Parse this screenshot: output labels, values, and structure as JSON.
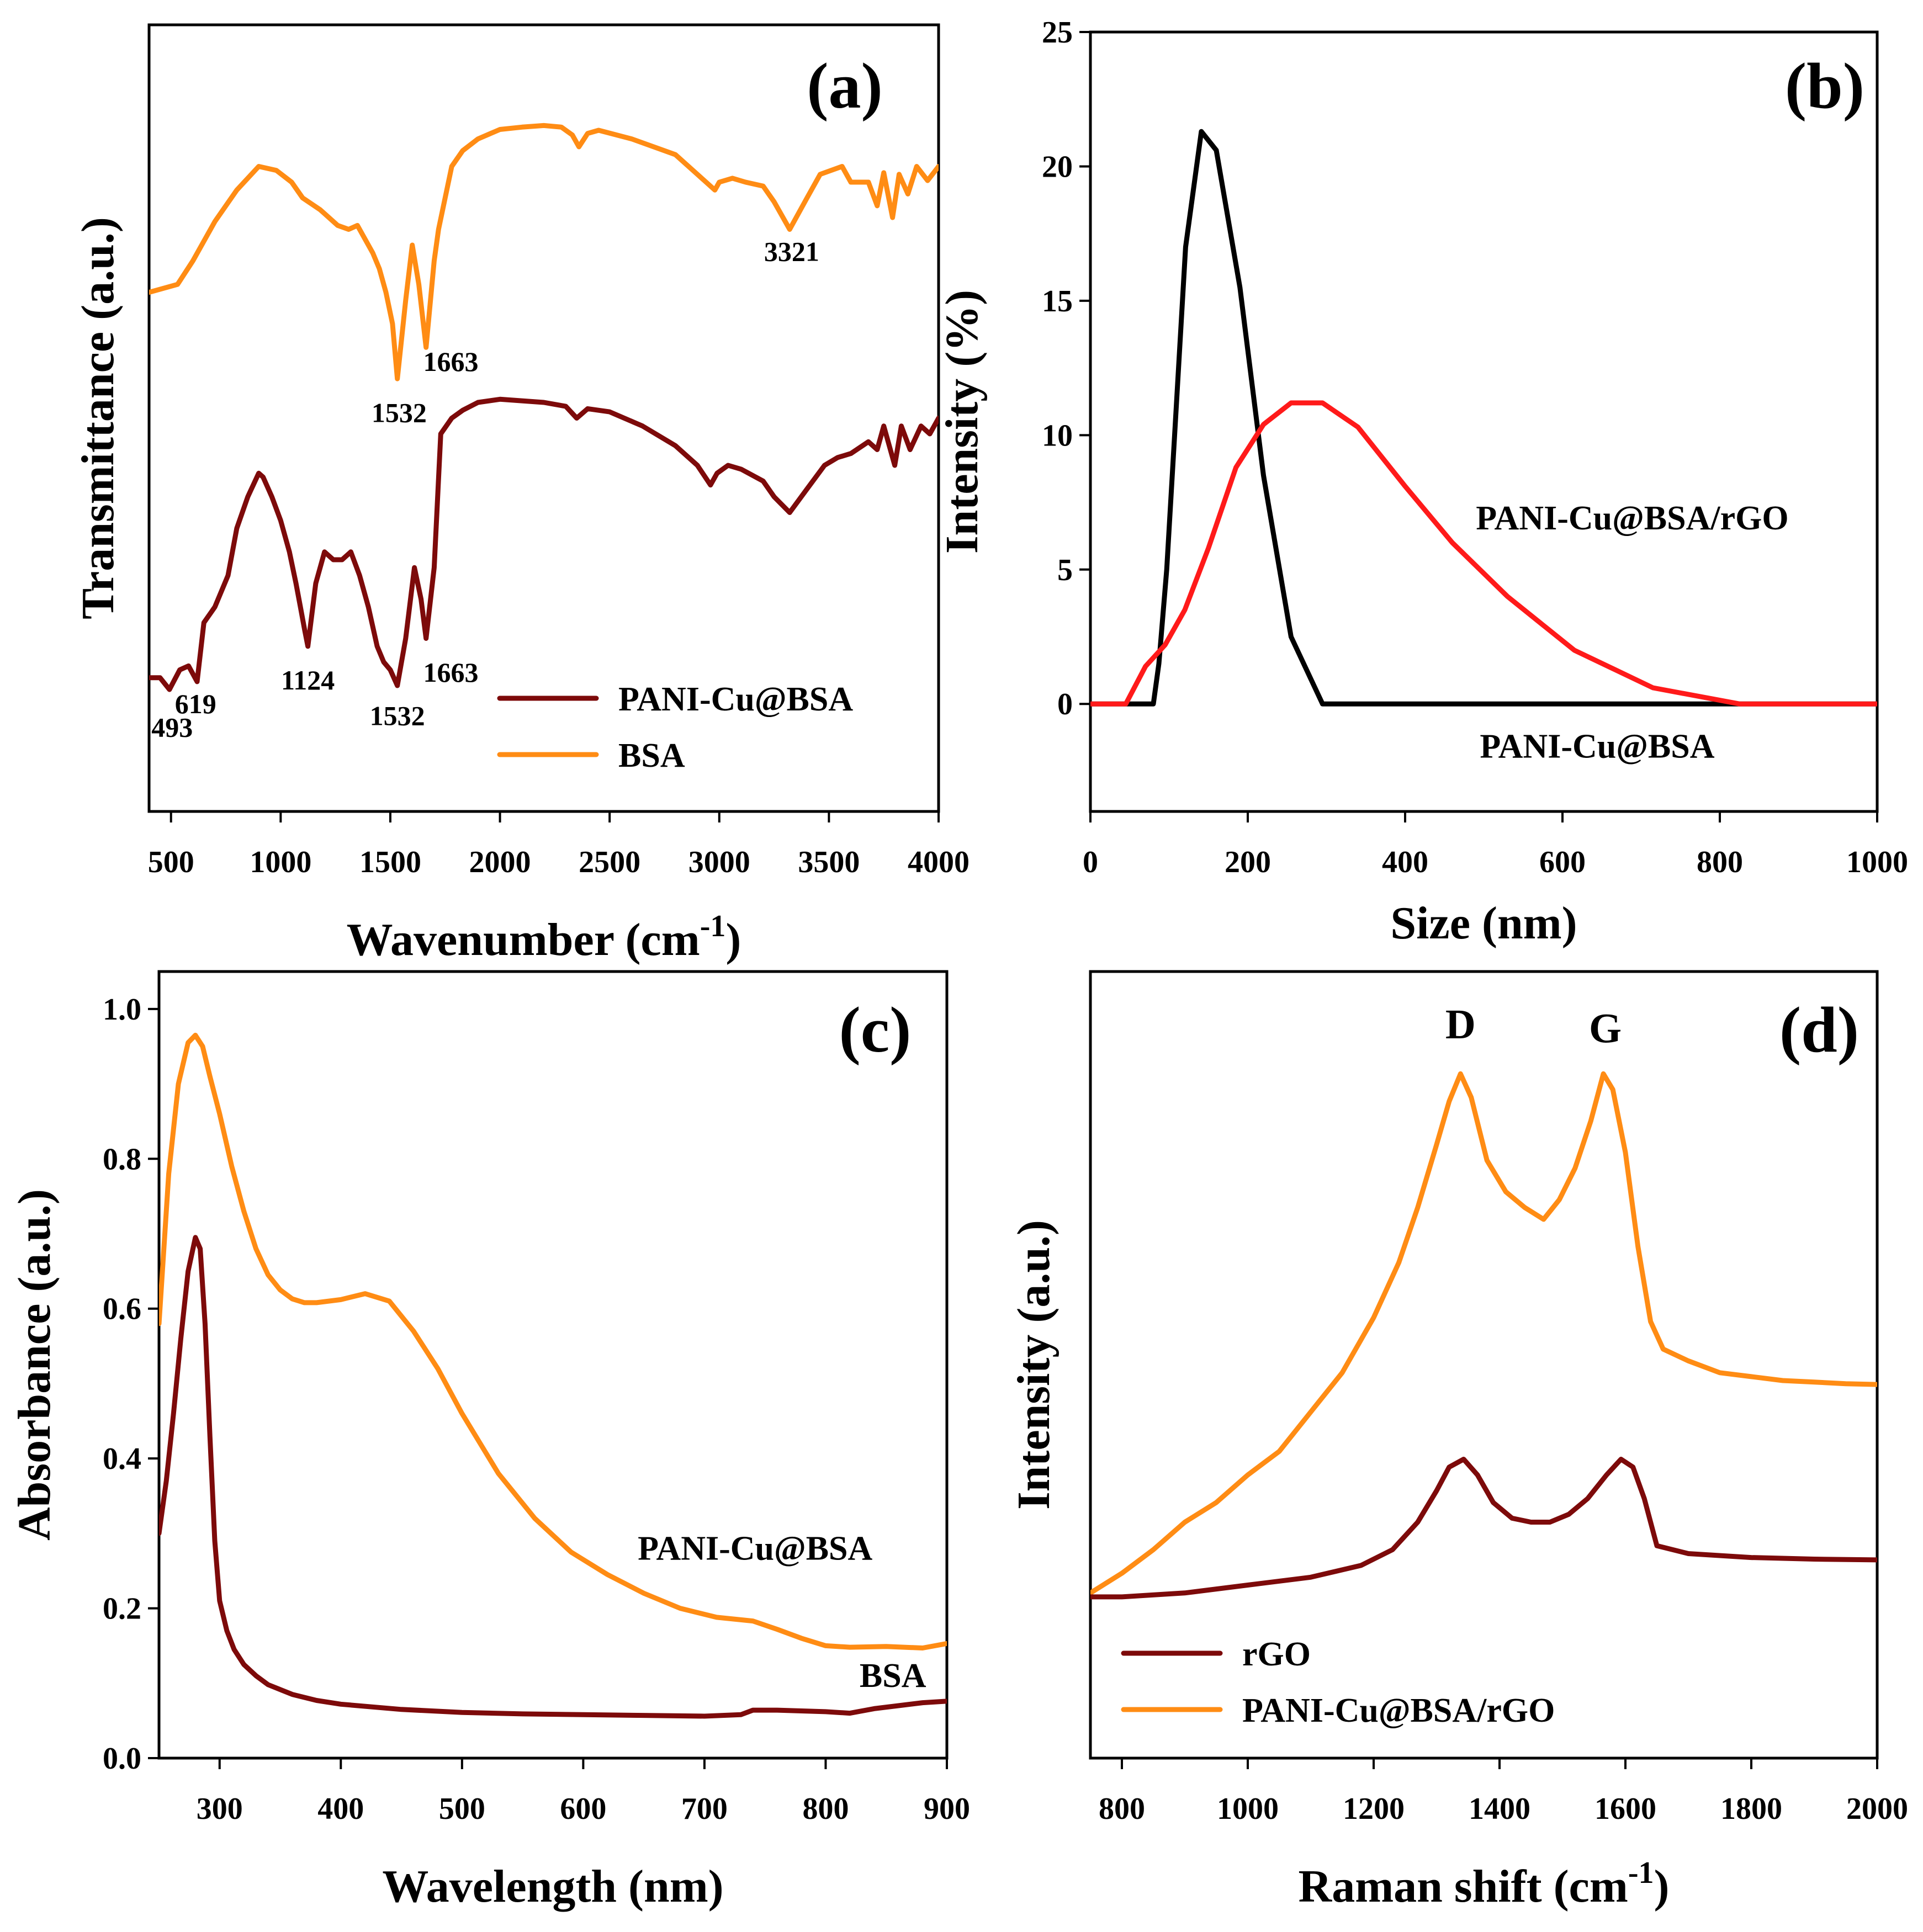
{
  "colors": {
    "orange": "#ff8c14",
    "maroon": "#7d0a0a",
    "black": "#000000",
    "red": "#ff1a1a"
  },
  "chart_data": [
    {
      "id": "a",
      "type": "line",
      "panel_label": "(a)",
      "xlabel": "Wavenumber (cm",
      "xlabel_sup": "-1",
      "xlabel_close": ")",
      "ylabel": "Transmittance (a.u.)",
      "xlim": [
        400,
        4000
      ],
      "ylim": [
        0,
        1
      ],
      "y_ticks_shown": false,
      "x_ticks": [
        500,
        1000,
        1500,
        2000,
        2500,
        3000,
        3500,
        4000
      ],
      "legend": {
        "position": "bottom-right",
        "entries": [
          "PANI-Cu@BSA",
          "BSA"
        ]
      },
      "series": [
        {
          "name": "BSA",
          "color": "orange",
          "x": [
            400,
            530,
            600,
            700,
            800,
            900,
            980,
            1050,
            1100,
            1180,
            1200,
            1260,
            1310,
            1350,
            1380,
            1420,
            1450,
            1480,
            1510,
            1532,
            1570,
            1600,
            1630,
            1663,
            1700,
            1720,
            1780,
            1830,
            1900,
            2000,
            2100,
            2200,
            2280,
            2330,
            2360,
            2400,
            2450,
            2600,
            2800,
            2900,
            2980,
            3000,
            3060,
            3120,
            3200,
            3250,
            3321,
            3400,
            3460,
            3560,
            3600,
            3680,
            3720,
            3750,
            3790,
            3820,
            3860,
            3900,
            3950,
            4000
          ],
          "y": [
            0.66,
            0.67,
            0.7,
            0.75,
            0.79,
            0.82,
            0.815,
            0.8,
            0.78,
            0.765,
            0.76,
            0.745,
            0.74,
            0.745,
            0.73,
            0.71,
            0.69,
            0.66,
            0.62,
            0.55,
            0.65,
            0.72,
            0.67,
            0.59,
            0.7,
            0.74,
            0.82,
            0.84,
            0.855,
            0.867,
            0.87,
            0.872,
            0.87,
            0.86,
            0.845,
            0.862,
            0.866,
            0.855,
            0.835,
            0.81,
            0.79,
            0.8,
            0.805,
            0.8,
            0.795,
            0.775,
            0.74,
            0.78,
            0.81,
            0.82,
            0.8,
            0.8,
            0.77,
            0.812,
            0.755,
            0.81,
            0.785,
            0.82,
            0.802,
            0.82
          ]
        },
        {
          "name": "PANI-Cu@BSA",
          "color": "maroon",
          "x": [
            400,
            450,
            493,
            540,
            580,
            619,
            650,
            700,
            760,
            800,
            850,
            900,
            920,
            960,
            1000,
            1040,
            1070,
            1090,
            1110,
            1124,
            1160,
            1200,
            1240,
            1280,
            1320,
            1360,
            1400,
            1440,
            1470,
            1500,
            1532,
            1570,
            1610,
            1640,
            1663,
            1700,
            1730,
            1780,
            1830,
            1900,
            2000,
            2100,
            2200,
            2300,
            2350,
            2400,
            2500,
            2650,
            2800,
            2900,
            2960,
            2990,
            3040,
            3100,
            3200,
            3250,
            3321,
            3400,
            3480,
            3540,
            3600,
            3680,
            3720,
            3750,
            3800,
            3830,
            3870,
            3920,
            3960,
            4000
          ],
          "y": [
            0.17,
            0.17,
            0.155,
            0.18,
            0.185,
            0.165,
            0.24,
            0.26,
            0.3,
            0.36,
            0.4,
            0.43,
            0.425,
            0.4,
            0.37,
            0.33,
            0.29,
            0.26,
            0.23,
            0.21,
            0.29,
            0.33,
            0.32,
            0.32,
            0.33,
            0.3,
            0.26,
            0.21,
            0.19,
            0.18,
            0.16,
            0.22,
            0.31,
            0.27,
            0.22,
            0.31,
            0.48,
            0.5,
            0.51,
            0.52,
            0.524,
            0.522,
            0.52,
            0.515,
            0.5,
            0.512,
            0.508,
            0.49,
            0.465,
            0.44,
            0.415,
            0.43,
            0.44,
            0.435,
            0.42,
            0.4,
            0.38,
            0.41,
            0.44,
            0.45,
            0.455,
            0.47,
            0.46,
            0.49,
            0.44,
            0.49,
            0.46,
            0.49,
            0.48,
            0.5
          ]
        }
      ],
      "annotations": [
        {
          "text": "3321",
          "x": 3330,
          "y": 0.7,
          "anchor": "middle"
        },
        {
          "text": "1663",
          "x": 1650,
          "y": 0.56,
          "anchor": "start"
        },
        {
          "text": "1532",
          "x": 1540,
          "y": 0.495,
          "anchor": "middle"
        },
        {
          "text": "493",
          "x": 505,
          "y": 0.095,
          "anchor": "middle"
        },
        {
          "text": "619",
          "x": 612,
          "y": 0.125,
          "anchor": "middle"
        },
        {
          "text": "1124",
          "x": 1124,
          "y": 0.155,
          "anchor": "middle"
        },
        {
          "text": "1532",
          "x": 1532,
          "y": 0.11,
          "anchor": "middle"
        },
        {
          "text": "1663",
          "x": 1650,
          "y": 0.165,
          "anchor": "start"
        }
      ]
    },
    {
      "id": "b",
      "type": "line",
      "panel_label": "(b)",
      "xlabel": "Size (nm)",
      "ylabel": "Intensity (%)",
      "xlim": [
        0,
        1000
      ],
      "ylim": [
        -4,
        25
      ],
      "x_ticks": [
        0,
        200,
        400,
        600,
        800,
        1000
      ],
      "y_ticks": [
        0,
        5,
        10,
        15,
        20,
        25
      ],
      "series": [
        {
          "name": "PANI-Cu@BSA",
          "color": "black",
          "x": [
            0,
            80,
            87,
            97,
            107,
            121,
            141,
            160,
            190,
            220,
            255,
            295,
            350,
            600,
            1000
          ],
          "y": [
            0,
            0,
            1.5,
            5,
            10,
            17,
            21.3,
            20.6,
            15.5,
            8.5,
            2.5,
            0,
            0,
            0,
            0
          ]
        },
        {
          "name": "PANI-Cu@BSA/rGO",
          "color": "red",
          "x": [
            0,
            45,
            70,
            95,
            120,
            150,
            185,
            220,
            255,
            295,
            340,
            400,
            460,
            530,
            615,
            715,
            825,
            900,
            1000
          ],
          "y": [
            0,
            0,
            1.4,
            2.2,
            3.5,
            5.8,
            8.8,
            10.4,
            11.2,
            11.2,
            10.3,
            8.1,
            6.0,
            4.0,
            2.0,
            0.6,
            0,
            0,
            0
          ]
        }
      ],
      "series_labels": [
        {
          "text": "PANI-Cu@BSA/rGO",
          "x": 490,
          "y": 6.5
        },
        {
          "text": "PANI-Cu@BSA",
          "x": 495,
          "y": -2.0
        }
      ]
    },
    {
      "id": "c",
      "type": "line",
      "panel_label": "(c)",
      "xlabel": "Wavelength (nm)",
      "ylabel": "Absorbance (a.u.)",
      "xlim": [
        250,
        900
      ],
      "ylim": [
        0.0,
        1.05
      ],
      "x_ticks": [
        300,
        400,
        500,
        600,
        700,
        800,
        900
      ],
      "y_ticks": [
        0.0,
        0.2,
        0.4,
        0.6,
        0.8,
        1.0
      ],
      "series": [
        {
          "name": "PANI-Cu@BSA",
          "color": "orange",
          "x": [
            250,
            258,
            266,
            274,
            280,
            286,
            292,
            300,
            310,
            320,
            330,
            340,
            350,
            360,
            370,
            380,
            400,
            420,
            440,
            460,
            480,
            500,
            530,
            560,
            590,
            620,
            650,
            680,
            710,
            740,
            760,
            780,
            800,
            820,
            850,
            880,
            900
          ],
          "y": [
            0.58,
            0.78,
            0.9,
            0.955,
            0.965,
            0.95,
            0.91,
            0.86,
            0.79,
            0.73,
            0.68,
            0.645,
            0.625,
            0.613,
            0.608,
            0.608,
            0.612,
            0.62,
            0.61,
            0.57,
            0.52,
            0.46,
            0.38,
            0.32,
            0.275,
            0.245,
            0.22,
            0.2,
            0.188,
            0.183,
            0.172,
            0.16,
            0.15,
            0.148,
            0.149,
            0.147,
            0.153
          ]
        },
        {
          "name": "BSA",
          "color": "maroon",
          "x": [
            250,
            256,
            262,
            268,
            274,
            280,
            284,
            288,
            292,
            296,
            300,
            306,
            312,
            320,
            330,
            340,
            360,
            380,
            400,
            450,
            500,
            550,
            600,
            650,
            700,
            730,
            740,
            760,
            780,
            800,
            820,
            840,
            860,
            880,
            900
          ],
          "y": [
            0.3,
            0.37,
            0.46,
            0.56,
            0.65,
            0.695,
            0.68,
            0.58,
            0.43,
            0.29,
            0.21,
            0.17,
            0.145,
            0.125,
            0.11,
            0.098,
            0.085,
            0.077,
            0.072,
            0.065,
            0.061,
            0.059,
            0.058,
            0.057,
            0.056,
            0.058,
            0.064,
            0.064,
            0.063,
            0.062,
            0.06,
            0.066,
            0.07,
            0.074,
            0.076
          ]
        }
      ],
      "series_labels": [
        {
          "text": "PANI-Cu@BSA",
          "x": 645,
          "y": 0.265
        },
        {
          "text": "BSA",
          "x": 828,
          "y": 0.095
        }
      ]
    },
    {
      "id": "d",
      "type": "line",
      "panel_label": "(d)",
      "xlabel": "Raman shift (cm",
      "xlabel_sup": "-1",
      "xlabel_close": ")",
      "ylabel": "Intensity (a.u.)",
      "xlim": [
        750,
        2000
      ],
      "ylim": [
        0,
        1
      ],
      "y_ticks_shown": false,
      "x_ticks": [
        800,
        1000,
        1200,
        1400,
        1600,
        1800,
        2000
      ],
      "legend": {
        "position": "bottom-left",
        "entries": [
          "rGO",
          "PANI-Cu@BSA/rGO"
        ]
      },
      "series": [
        {
          "name": "PANI-Cu@BSA/rGO",
          "color": "orange",
          "x": [
            750,
            800,
            850,
            900,
            950,
            1000,
            1050,
            1100,
            1150,
            1200,
            1240,
            1270,
            1300,
            1320,
            1338,
            1355,
            1380,
            1410,
            1440,
            1470,
            1495,
            1520,
            1545,
            1565,
            1580,
            1600,
            1620,
            1640,
            1660,
            1700,
            1750,
            1800,
            1850,
            1900,
            1950,
            2000
          ],
          "y": [
            0.21,
            0.235,
            0.265,
            0.3,
            0.325,
            0.36,
            0.39,
            0.44,
            0.49,
            0.56,
            0.63,
            0.7,
            0.78,
            0.835,
            0.87,
            0.84,
            0.76,
            0.72,
            0.7,
            0.685,
            0.71,
            0.75,
            0.81,
            0.87,
            0.85,
            0.77,
            0.65,
            0.555,
            0.52,
            0.505,
            0.49,
            0.485,
            0.48,
            0.478,
            0.476,
            0.475
          ]
        },
        {
          "name": "rGO",
          "color": "maroon",
          "x": [
            750,
            800,
            900,
            1000,
            1100,
            1180,
            1230,
            1270,
            1300,
            1320,
            1343,
            1365,
            1390,
            1420,
            1450,
            1480,
            1510,
            1540,
            1570,
            1593,
            1612,
            1630,
            1650,
            1700,
            1800,
            1900,
            2000
          ],
          "y": [
            0.205,
            0.205,
            0.21,
            0.22,
            0.23,
            0.245,
            0.265,
            0.3,
            0.34,
            0.37,
            0.38,
            0.36,
            0.325,
            0.305,
            0.3,
            0.3,
            0.31,
            0.33,
            0.36,
            0.38,
            0.37,
            0.33,
            0.27,
            0.26,
            0.255,
            0.253,
            0.252
          ]
        }
      ],
      "peak_labels": [
        {
          "text": "D",
          "x": 1338,
          "y": 0.915
        },
        {
          "text": "G",
          "x": 1568,
          "y": 0.91
        }
      ]
    }
  ]
}
